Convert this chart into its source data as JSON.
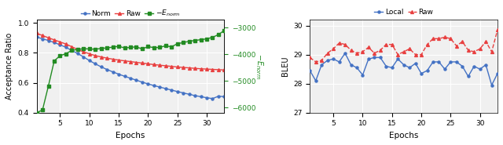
{
  "left": {
    "xlabel": "Epochs",
    "ylabel_left": "Acceptance Ratio",
    "xlim": [
      1,
      33
    ],
    "xticks": [
      5,
      10,
      15,
      20,
      25,
      30
    ],
    "ylim_left": [
      0.4,
      1.02
    ],
    "yticks_left": [
      0.4,
      0.6,
      0.8,
      1.0
    ],
    "ylim_right": [
      -6200,
      -2700
    ],
    "yticks_right": [
      -6000,
      -5000,
      -4000,
      -3000
    ],
    "norm_color": "#4472C4",
    "raw_color": "#E84040",
    "energy_color": "#228B22",
    "epochs": [
      1,
      2,
      3,
      4,
      5,
      6,
      7,
      8,
      9,
      10,
      11,
      12,
      13,
      14,
      15,
      16,
      17,
      18,
      19,
      20,
      21,
      22,
      23,
      24,
      25,
      26,
      27,
      28,
      29,
      30,
      31,
      32,
      33
    ],
    "norm_vals": [
      0.905,
      0.893,
      0.882,
      0.868,
      0.853,
      0.836,
      0.815,
      0.795,
      0.772,
      0.748,
      0.726,
      0.706,
      0.688,
      0.672,
      0.657,
      0.643,
      0.63,
      0.617,
      0.604,
      0.592,
      0.581,
      0.571,
      0.561,
      0.551,
      0.541,
      0.532,
      0.523,
      0.514,
      0.507,
      0.5,
      0.494,
      0.51,
      0.507
    ],
    "raw_vals": [
      0.93,
      0.915,
      0.9,
      0.886,
      0.872,
      0.858,
      0.84,
      0.822,
      0.806,
      0.793,
      0.781,
      0.772,
      0.764,
      0.757,
      0.751,
      0.746,
      0.741,
      0.736,
      0.731,
      0.726,
      0.721,
      0.717,
      0.713,
      0.709,
      0.705,
      0.702,
      0.699,
      0.696,
      0.693,
      0.691,
      0.689,
      0.687,
      0.685
    ],
    "energy_vals": [
      -6200,
      -6100,
      -5200,
      -4250,
      -4050,
      -3980,
      -3850,
      -3820,
      -3790,
      -3800,
      -3810,
      -3780,
      -3760,
      -3730,
      -3700,
      -3760,
      -3740,
      -3720,
      -3800,
      -3710,
      -3750,
      -3740,
      -3680,
      -3720,
      -3600,
      -3560,
      -3510,
      -3480,
      -3450,
      -3420,
      -3360,
      -3260,
      -3100
    ]
  },
  "right": {
    "xlabel": "Epochs",
    "ylabel": "BLEU",
    "xlim": [
      1,
      33
    ],
    "xticks": [
      5,
      10,
      15,
      20,
      25,
      30
    ],
    "ylim": [
      27.0,
      30.2
    ],
    "yticks": [
      27,
      28,
      29,
      30
    ],
    "local_color": "#4472C4",
    "raw_color": "#E84040",
    "epochs": [
      1,
      2,
      3,
      4,
      5,
      6,
      7,
      8,
      9,
      10,
      11,
      12,
      13,
      14,
      15,
      16,
      17,
      18,
      19,
      20,
      21,
      22,
      23,
      24,
      25,
      26,
      27,
      28,
      29,
      30,
      31,
      32,
      33
    ],
    "local_vals": [
      28.45,
      28.1,
      28.65,
      28.8,
      28.85,
      28.75,
      29.05,
      28.65,
      28.55,
      28.3,
      28.85,
      28.9,
      28.9,
      28.6,
      28.55,
      28.85,
      28.65,
      28.55,
      28.7,
      28.35,
      28.45,
      28.75,
      28.75,
      28.5,
      28.75,
      28.75,
      28.6,
      28.25,
      28.6,
      28.5,
      28.65,
      27.95,
      28.35
    ],
    "raw_vals": [
      28.9,
      28.75,
      28.8,
      29.05,
      29.2,
      29.4,
      29.35,
      29.15,
      29.05,
      29.1,
      29.25,
      29.05,
      29.15,
      29.35,
      29.35,
      29.0,
      29.1,
      29.2,
      29.0,
      29.0,
      29.35,
      29.55,
      29.55,
      29.6,
      29.55,
      29.3,
      29.45,
      29.15,
      29.1,
      29.2,
      29.45,
      29.1,
      29.85
    ]
  },
  "bg_color": "#ffffff",
  "plot_bg_color": "#f0f0f0",
  "grid_color": "#ffffff"
}
